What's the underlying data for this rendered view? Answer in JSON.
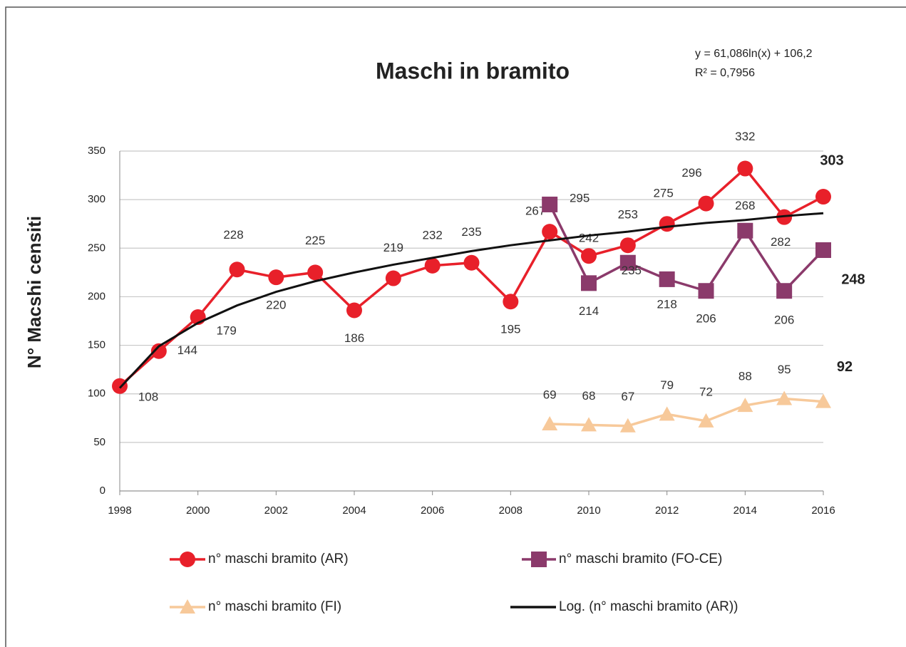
{
  "chart_data": {
    "type": "line",
    "title": "Maschi in bramito",
    "y_label": "N° Macshi censiti",
    "annotations": [
      "y = 61,086ln(x) + 106,2",
      "R² = 0,7956"
    ],
    "x": [
      1998,
      1999,
      2000,
      2001,
      2002,
      2003,
      2004,
      2005,
      2006,
      2007,
      2008,
      2009,
      2010,
      2011,
      2012,
      2013,
      2014,
      2015,
      2016
    ],
    "series": [
      {
        "name": "n° maschi bramito (AR)",
        "color": "#e8202a",
        "marker": "circle",
        "data_labels": true,
        "values": [
          108,
          144,
          179,
          228,
          220,
          225,
          186,
          219,
          232,
          235,
          195,
          267,
          242,
          253,
          275,
          296,
          332,
          282,
          303
        ]
      },
      {
        "name": "n° maschi bramito (FO-CE)",
        "color": "#8b3a6b",
        "marker": "square",
        "data_labels": true,
        "values": [
          null,
          null,
          null,
          null,
          null,
          null,
          null,
          null,
          null,
          null,
          null,
          295,
          214,
          235,
          218,
          206,
          268,
          206,
          248
        ]
      },
      {
        "name": "n° maschi bramito (FI)",
        "color": "#f7c99a",
        "marker": "triangle",
        "data_labels": true,
        "values": [
          null,
          null,
          null,
          null,
          null,
          null,
          null,
          null,
          null,
          null,
          null,
          69,
          68,
          67,
          79,
          72,
          88,
          95,
          92
        ]
      },
      {
        "name": "Log. (n° maschi bramito (AR))",
        "color": "#111111",
        "data_labels": false,
        "values": [
          106,
          149,
          173,
          191,
          205,
          216,
          225,
          233,
          240,
          247,
          253,
          258,
          263,
          267,
          272,
          276,
          279,
          283,
          286
        ]
      }
    ],
    "xlim": [
      1998,
      2016
    ],
    "xticks": [
      1998,
      2000,
      2002,
      2004,
      2006,
      2008,
      2010,
      2012,
      2014,
      2016
    ],
    "ylim": [
      0,
      350
    ],
    "yticks": [
      0,
      50,
      100,
      150,
      200,
      250,
      300,
      350
    ],
    "grid": true,
    "legend": "bottom"
  }
}
